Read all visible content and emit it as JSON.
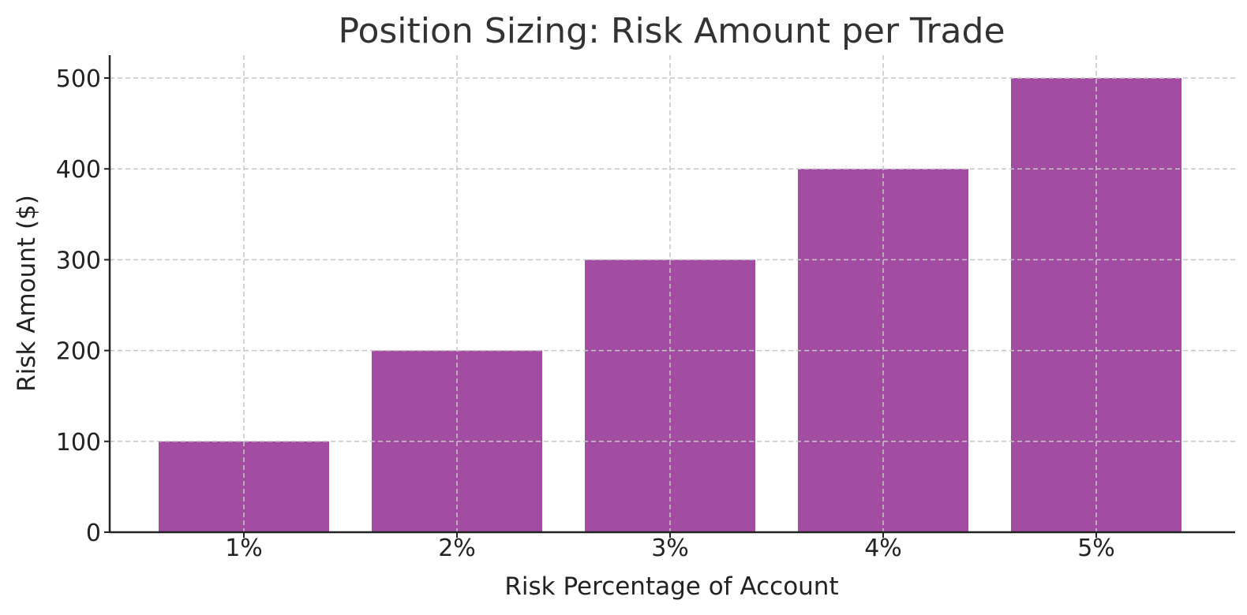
{
  "chart_data": {
    "type": "bar",
    "title": "Position Sizing: Risk Amount per Trade",
    "xlabel": "Risk Percentage of Account",
    "ylabel": "Risk Amount ($)",
    "categories": [
      "1%",
      "2%",
      "3%",
      "4%",
      "5%"
    ],
    "values": [
      100,
      200,
      300,
      400,
      500
    ],
    "ylim": [
      0,
      525
    ],
    "yticks": [
      0,
      100,
      200,
      300,
      400,
      500
    ],
    "grid": true,
    "bar_color": "#a24ca2"
  }
}
